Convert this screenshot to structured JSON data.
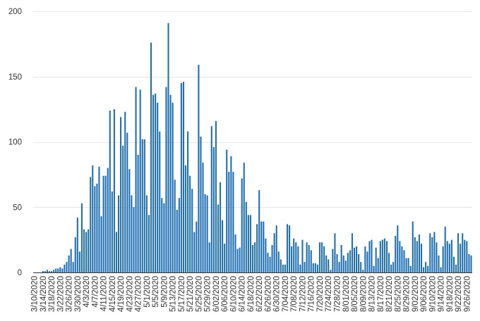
{
  "chart_data": {
    "type": "bar",
    "title": "",
    "xlabel": "",
    "ylabel": "",
    "ylim": [
      0,
      200
    ],
    "yticks": [
      0,
      50,
      100,
      150,
      200
    ],
    "grid": "horizontal",
    "bar_color": "#1f6fb4",
    "start_date": "3/10/2020",
    "x_tick_labels": [
      "3/10/2020",
      "3/14/2020",
      "3/18/2020",
      "3/22/2020",
      "3/26/2020",
      "3/30/2020",
      "4/3/2020",
      "4/7/2020",
      "4/11/2020",
      "4/15/2020",
      "4/19/2020",
      "4/23/2020",
      "4/27/2020",
      "5/1/2020",
      "5/5/2020",
      "5/9/2020",
      "5/13/2020",
      "5/17/2020",
      "5/21/2020",
      "5/25/2020",
      "5/29/2020",
      "6/02/2020",
      "6/06/2020",
      "6/10/2020",
      "6/14/2020",
      "6/18/2020",
      "6/22/2020",
      "6/26/2020",
      "6/30/2020",
      "7/04/2020",
      "7/08/2020",
      "7/12/2020",
      "7/16/2020",
      "7/20/2020",
      "7/24/2020",
      "7/28/2020",
      "8/01/2020",
      "8/05/2020",
      "8/09/2020",
      "8/13/2020",
      "8/17/2020",
      "8/21/2020",
      "8/25/2020",
      "8/29/2020",
      "9/02/2020",
      "9/06/2020",
      "9/10/2020",
      "9/14/2020",
      "9/18/2020",
      "9/22/2020",
      "9/26/2020"
    ],
    "values": [
      0,
      0,
      0,
      0,
      1,
      1,
      2,
      1,
      1,
      2,
      3,
      3,
      4,
      3,
      6,
      8,
      13,
      18,
      8,
      27,
      42,
      16,
      53,
      33,
      31,
      33,
      73,
      82,
      66,
      68,
      81,
      43,
      74,
      74,
      80,
      124,
      62,
      125,
      31,
      59,
      119,
      97,
      123,
      107,
      79,
      59,
      50,
      142,
      90,
      140,
      102,
      102,
      59,
      44,
      176,
      136,
      137,
      130,
      108,
      57,
      53,
      142,
      191,
      136,
      130,
      71,
      48,
      57,
      145,
      146,
      82,
      108,
      74,
      64,
      31,
      39,
      159,
      104,
      84,
      60,
      59,
      23,
      112,
      96,
      116,
      52,
      69,
      40,
      22,
      94,
      77,
      89,
      77,
      29,
      18,
      19,
      72,
      84,
      54,
      44,
      44,
      21,
      23,
      37,
      63,
      39,
      39,
      26,
      15,
      12,
      21,
      30,
      36,
      16,
      10,
      6,
      6,
      37,
      36,
      20,
      26,
      23,
      20,
      6,
      25,
      8,
      23,
      21,
      17,
      7,
      7,
      6,
      23,
      23,
      20,
      13,
      10,
      2,
      18,
      30,
      14,
      8,
      21,
      13,
      9,
      15,
      17,
      30,
      19,
      20,
      14,
      8,
      2,
      20,
      16,
      24,
      25,
      5,
      19,
      11,
      24,
      25,
      26,
      24,
      15,
      6,
      8,
      28,
      36,
      24,
      20,
      17,
      11,
      11,
      5,
      39,
      27,
      24,
      29,
      22,
      4,
      8,
      5,
      30,
      27,
      31,
      23,
      13,
      4,
      20,
      35,
      24,
      22,
      25,
      12,
      6,
      30,
      22,
      30,
      25,
      24,
      14,
      13
    ]
  }
}
